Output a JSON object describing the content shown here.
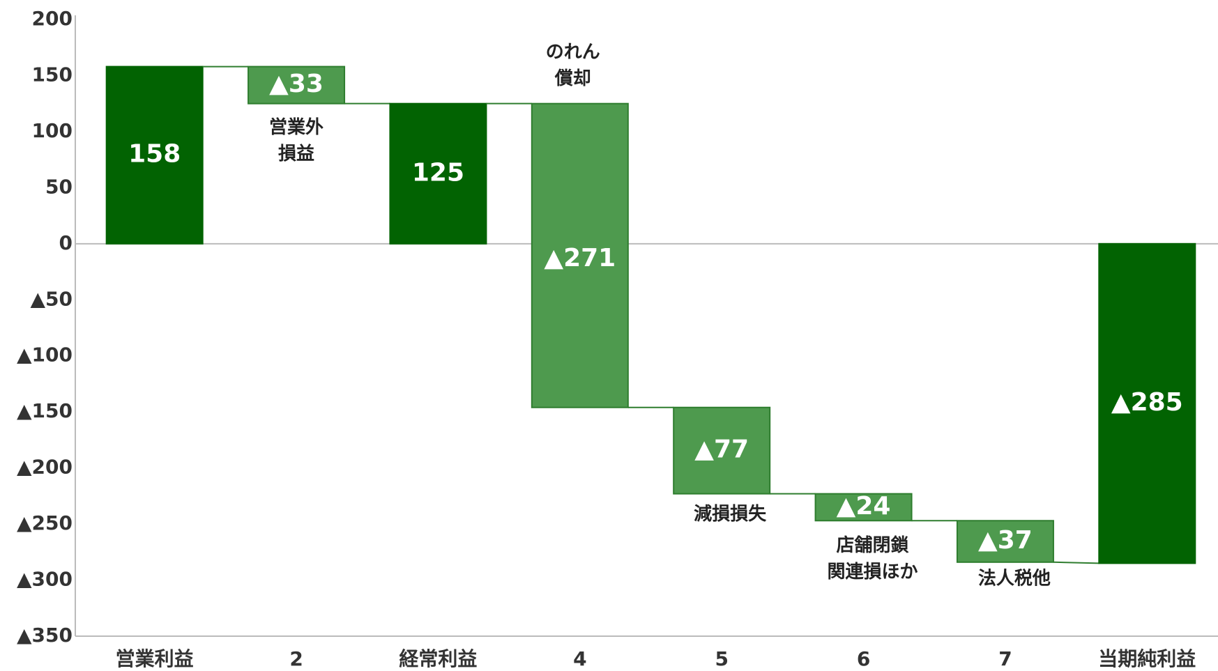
{
  "chart_data": {
    "type": "waterfall",
    "categories": [
      "営業利益",
      "2",
      "経常利益",
      "4",
      "5",
      "6",
      "7",
      "当期純利益"
    ],
    "values": [
      158,
      -33,
      125,
      -271,
      -77,
      -24,
      -37,
      -285
    ],
    "value_labels": [
      "158",
      "▲33",
      "125",
      "▲271",
      "▲77",
      "▲24",
      "▲37",
      "▲285"
    ],
    "totals": [
      0,
      2,
      7
    ],
    "color": "#4e9a4e",
    "total_color": "#026302",
    "ylim": [
      -350,
      200
    ],
    "yticks": [
      {
        "value": -350,
        "label": "▲350"
      },
      {
        "value": -300,
        "label": "▲300"
      },
      {
        "value": -250,
        "label": "▲250"
      },
      {
        "value": -200,
        "label": "▲200"
      },
      {
        "value": -150,
        "label": "▲150"
      },
      {
        "value": -100,
        "label": "▲100"
      },
      {
        "value": -50,
        "label": "▲50"
      },
      0,
      50,
      100,
      150,
      200
    ],
    "annotations": [
      {
        "category": 1,
        "lines": [
          "営業外",
          "損益"
        ]
      },
      {
        "category": 3,
        "lines": [
          "のれん",
          "償却"
        ]
      },
      {
        "category": 4,
        "lines": [
          "減損損失"
        ]
      },
      {
        "category": 5,
        "lines": [
          "店舗閉鎖",
          "関連損ほか"
        ]
      },
      {
        "category": 6,
        "lines": [
          "法人税他"
        ]
      }
    ]
  }
}
